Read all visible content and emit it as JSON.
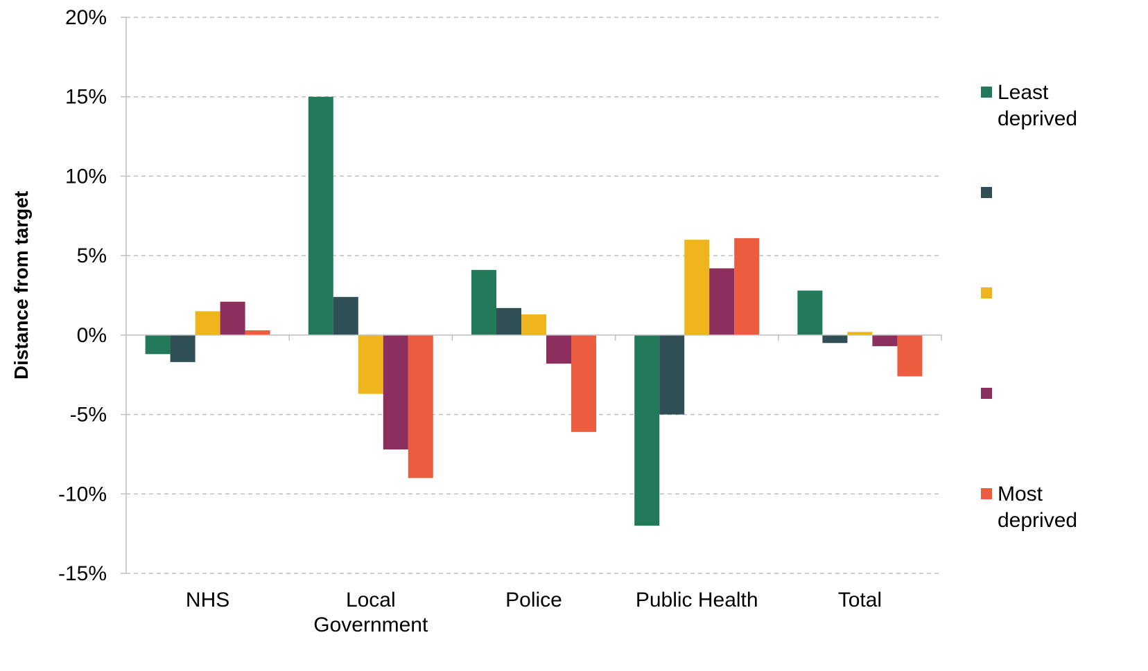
{
  "chart_data": {
    "type": "bar",
    "ylabel": "Distance from target",
    "xlabel": "",
    "ylim": [
      -15,
      20
    ],
    "y_ticks": [
      20,
      15,
      10,
      5,
      0,
      -5,
      -10,
      -15
    ],
    "y_tick_labels": [
      "20%",
      "15%",
      "10%",
      "5%",
      "0%",
      "-5%",
      "-10%",
      "-15%"
    ],
    "categories": [
      [
        "NHS"
      ],
      [
        "Local",
        "Government"
      ],
      [
        "Police"
      ],
      [
        "Public Health"
      ],
      [
        "Total"
      ]
    ],
    "grid": true,
    "legend_position": "right",
    "series": [
      {
        "name": "Least deprived",
        "legend_lines": [
          "Least",
          "deprived"
        ],
        "color": "#227a5a",
        "values": [
          -1.2,
          15.0,
          4.1,
          -12.0,
          2.8
        ]
      },
      {
        "legend_lines": [],
        "color": "#304e56",
        "values": [
          -1.7,
          2.4,
          1.7,
          -5.0,
          -0.5
        ]
      },
      {
        "legend_lines": [],
        "color": "#f0b51c",
        "values": [
          1.5,
          -3.7,
          1.3,
          6.0,
          0.2
        ]
      },
      {
        "legend_lines": [],
        "color": "#8c2f5e",
        "values": [
          2.1,
          -7.2,
          -1.8,
          4.2,
          -0.7
        ]
      },
      {
        "name": "Most deprived",
        "legend_lines": [
          "Most",
          "deprived"
        ],
        "color": "#ec5d3f",
        "values": [
          0.3,
          -9.0,
          -6.1,
          6.1,
          -2.6
        ]
      }
    ]
  }
}
